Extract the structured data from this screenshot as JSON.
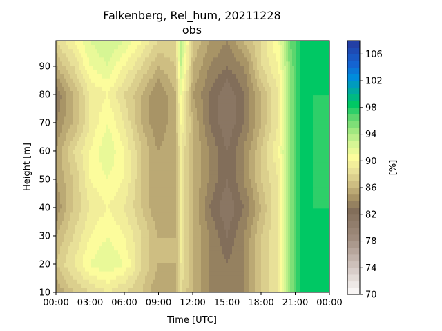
{
  "chart_data": {
    "type": "heatmap",
    "title": "Falkenberg, Rel_hum, 20211228",
    "subtitle": "obs",
    "xlabel": "Time [UTC]",
    "ylabel": "Height [m]",
    "x_ticks": [
      "00:00",
      "03:00",
      "06:00",
      "09:00",
      "12:00",
      "15:00",
      "18:00",
      "21:00",
      "00:00"
    ],
    "y_ticks": [
      10,
      20,
      30,
      40,
      50,
      60,
      70,
      80,
      90
    ],
    "xlim_hours": [
      0,
      24
    ],
    "ylim": [
      10,
      99
    ],
    "colorbar": {
      "label": "[%]",
      "range": [
        70,
        108
      ],
      "ticks": [
        70,
        74,
        78,
        82,
        86,
        90,
        94,
        98,
        102,
        106
      ]
    },
    "heights": [
      10,
      20,
      30,
      40,
      50,
      60,
      70,
      80,
      90,
      99
    ],
    "hours": [
      0,
      1.5,
      3,
      4.5,
      6,
      7.5,
      9,
      10.5,
      11,
      12,
      13.5,
      15,
      16.5,
      18,
      19.5,
      20.5,
      21.5,
      22.5,
      24
    ],
    "values": [
      [
        85,
        87,
        88,
        89,
        88,
        87,
        85,
        86,
        88,
        86,
        84,
        83,
        84,
        87,
        89,
        95,
        98,
        98,
        98
      ],
      [
        87,
        89,
        91,
        92,
        91,
        88,
        86,
        86,
        89,
        86,
        84,
        83,
        84,
        87,
        89,
        95,
        98,
        98,
        98
      ],
      [
        86,
        88,
        90,
        91,
        90,
        88,
        86,
        86,
        89,
        86,
        84,
        82,
        84,
        87,
        89,
        95,
        98,
        98,
        98
      ],
      [
        84,
        87,
        89,
        90,
        89,
        87,
        85,
        86,
        89,
        86,
        83,
        81,
        83,
        86,
        89,
        95,
        98,
        98,
        98
      ],
      [
        85,
        87,
        90,
        91,
        90,
        87,
        85,
        86,
        89,
        86,
        84,
        82,
        84,
        87,
        89,
        95,
        98,
        98,
        97
      ],
      [
        85,
        88,
        90,
        92,
        90,
        87,
        85,
        86,
        89,
        86,
        84,
        82,
        84,
        87,
        90,
        95,
        98,
        98,
        97
      ],
      [
        84,
        86,
        89,
        91,
        89,
        86,
        84,
        86,
        90,
        86,
        83,
        81,
        83,
        86,
        89,
        95,
        98,
        98,
        97
      ],
      [
        83,
        86,
        89,
        90,
        88,
        86,
        84,
        86,
        91,
        85,
        83,
        81,
        83,
        86,
        89,
        95,
        98,
        98,
        98
      ],
      [
        86,
        88,
        91,
        92,
        90,
        88,
        86,
        87,
        93,
        86,
        84,
        83,
        84,
        88,
        90,
        95,
        98,
        98,
        98
      ],
      [
        88,
        90,
        92,
        93,
        92,
        90,
        88,
        88,
        94,
        87,
        85,
        84,
        86,
        88,
        91,
        96,
        98,
        98,
        98
      ]
    ]
  }
}
